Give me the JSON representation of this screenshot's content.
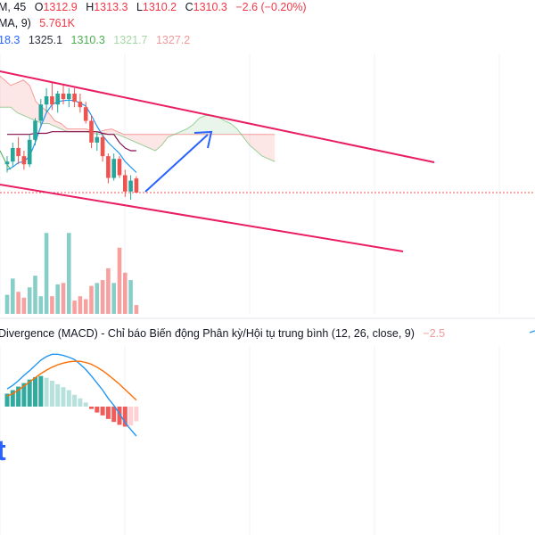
{
  "legend": {
    "row1": {
      "interval": "M, 45",
      "o_label": "O",
      "o_value": "1312.9",
      "h_label": "H",
      "h_value": "1313.3",
      "l_label": "L",
      "l_value": "1310.2",
      "c_label": "C",
      "c_value": "1310.3",
      "change": "−2.6 (−0.20%)"
    },
    "row2": {
      "label": "MA, 9)",
      "value": "5.761K"
    },
    "row3": {
      "values": [
        "18.3",
        "1325.1",
        "1310.3",
        "1321.7",
        "1327.2"
      ]
    }
  },
  "macd": {
    "title": "Divergence (MACD) - Chỉ báo Biến động Phân kỳ/Hội tụ trung bình (12, 26, close, 9)",
    "value": "−2.5"
  },
  "colors": {
    "up": "#26a69a",
    "down": "#ef5350",
    "channel": "#e91e63",
    "arrow": "#2962ff",
    "legend_text": "#131722",
    "legend_red": "#f23645",
    "legend_blue": "#2962ff",
    "legend_dark": "#2a2e39",
    "legend_green": "#4caf50",
    "legend_lightgreen": "#a5d6a7",
    "legend_pink": "#ef9a9a",
    "macd_line": "#2196f3",
    "signal_line": "#ff6d00",
    "base_line": "#880e4f",
    "price_line": "#ef5350"
  },
  "chart_data": [
    {
      "type": "candlestick",
      "series": [
        {
          "name": "ohlc",
          "values": [
            [
              1315.5,
              1317.0,
              1314.0,
              1316.0
            ],
            [
              1316.0,
              1319.5,
              1315.0,
              1318.5
            ],
            [
              1318.5,
              1320.5,
              1315.5,
              1317.0
            ],
            [
              1317.0,
              1318.0,
              1314.5,
              1315.5
            ],
            [
              1315.5,
              1321.0,
              1315.0,
              1320.0
            ],
            [
              1320.0,
              1324.0,
              1319.0,
              1323.5
            ],
            [
              1323.5,
              1327.5,
              1322.5,
              1326.5
            ],
            [
              1326.5,
              1329.5,
              1325.0,
              1328.0
            ],
            [
              1328.0,
              1330.5,
              1325.5,
              1326.5
            ],
            [
              1326.5,
              1329.0,
              1325.0,
              1328.5
            ],
            [
              1328.5,
              1330.0,
              1326.5,
              1327.5
            ],
            [
              1327.5,
              1329.5,
              1326.0,
              1328.5
            ],
            [
              1328.5,
              1329.5,
              1326.0,
              1327.0
            ],
            [
              1327.0,
              1328.5,
              1325.0,
              1326.0
            ],
            [
              1326.0,
              1327.0,
              1323.0,
              1323.5
            ],
            [
              1323.5,
              1324.5,
              1318.5,
              1319.5
            ],
            [
              1319.5,
              1321.5,
              1318.0,
              1320.5
            ],
            [
              1320.5,
              1321.0,
              1316.0,
              1317.0
            ],
            [
              1317.0,
              1317.5,
              1312.0,
              1313.0
            ],
            [
              1313.0,
              1317.5,
              1312.5,
              1316.5
            ],
            [
              1316.5,
              1317.0,
              1313.0,
              1313.5
            ],
            [
              1313.5,
              1314.5,
              1309.5,
              1310.5
            ],
            [
              1310.5,
              1313.5,
              1309.0,
              1312.5
            ],
            [
              1312.9,
              1313.3,
              1310.2,
              1310.3
            ]
          ]
        },
        {
          "name": "volume",
          "values": [
            1.3,
            2.4,
            1.5,
            1.1,
            1.8,
            2.6,
            1.2,
            5.5,
            1.2,
            2.0,
            2.1,
            5.5,
            0.9,
            1.2,
            1.0,
            1.9,
            2.1,
            2.3,
            3.1,
            2.1,
            4.5,
            2.8,
            2.3,
            0.6
          ]
        }
      ],
      "indicator_lines": [
        {
          "name": "conversion",
          "values": [
            1314.5,
            1315.0,
            1315.8,
            1316.0,
            1317.0,
            1319.5,
            1322.5,
            1325.0,
            1326.5,
            1327.0,
            1327.2,
            1327.3,
            1327.2,
            1326.8,
            1326.2,
            1324.5,
            1322.5,
            1320.8,
            1319.5,
            1318.5,
            1317.5,
            1316.0,
            1315.0,
            1314.0
          ]
        },
        {
          "name": "base",
          "values": [
            1321.0,
            1321.0,
            1321.0,
            1321.0,
            1321.0,
            1321.2,
            1321.2,
            1321.2,
            1321.5,
            1321.5,
            1321.5,
            1321.5,
            1321.5,
            1321.5,
            1321.5,
            1321.5,
            1321.5,
            1321.2,
            1321.0,
            1321.0,
            1319.5,
            1318.5,
            1318.0,
            1318.0
          ]
        }
      ],
      "last_price": 1310.3,
      "channel": {
        "upper": [
          [
            0,
            1333.5
          ],
          [
            60,
            1310.0
          ]
        ],
        "lower": [
          [
            0,
            1312.0
          ],
          [
            55,
            1298.0
          ]
        ]
      }
    },
    {
      "type": "bar",
      "name": "macd",
      "histogram": [
        2.2,
        2.8,
        3.4,
        4.0,
        4.6,
        5.0,
        5.2,
        4.9,
        4.4,
        3.8,
        3.3,
        2.8,
        2.0,
        1.4,
        0.7,
        -0.4,
        -1.0,
        -1.5,
        -2.1,
        -2.6,
        -3.1,
        -3.4,
        -3.2,
        -2.5
      ],
      "series": [
        {
          "name": "macd",
          "values": [
            3.0,
            3.6,
            4.4,
            5.3,
            6.1,
            7.0,
            7.9,
            8.5,
            8.9,
            8.9,
            8.7,
            8.4,
            8.0,
            7.2,
            6.3,
            5.2,
            4.0,
            2.8,
            1.4,
            0.2,
            -1.2,
            -2.7,
            -3.9,
            -5.0
          ]
        },
        {
          "name": "signal",
          "values": [
            1.8,
            2.2,
            2.8,
            3.5,
            4.2,
            4.9,
            5.6,
            6.2,
            6.7,
            7.1,
            7.4,
            7.6,
            7.7,
            7.7,
            7.5,
            7.2,
            6.7,
            6.1,
            5.4,
            4.6,
            3.8,
            2.9,
            2.0,
            1.1
          ]
        }
      ]
    }
  ]
}
